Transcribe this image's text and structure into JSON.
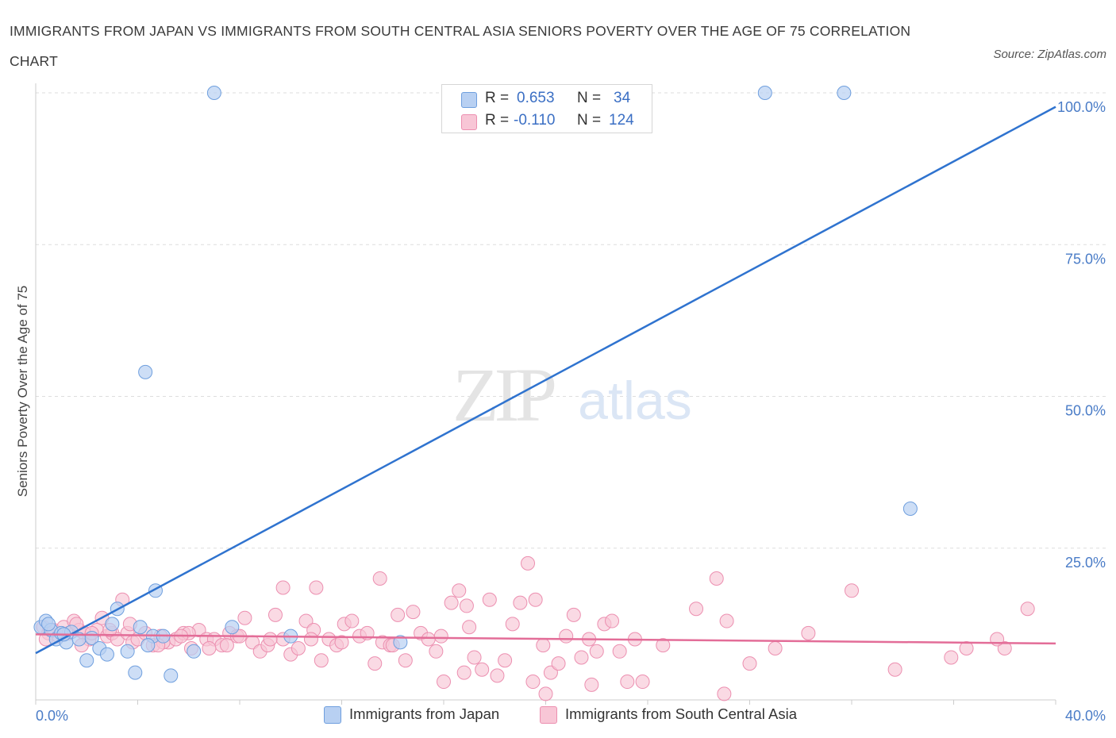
{
  "title": "IMMIGRANTS FROM JAPAN VS IMMIGRANTS FROM SOUTH CENTRAL ASIA SENIORS POVERTY OVER THE AGE OF 75 CORRELATION CHART",
  "source": "Source: ZipAtlas.com",
  "watermark": {
    "zip": "ZIP",
    "atlas": "atlas"
  },
  "legend": {
    "japan": {
      "r_label": "R =",
      "r_value": "0.653",
      "n_label": "N =",
      "n_value": "34"
    },
    "sca": {
      "r_label": "R =",
      "r_value": "-0.110",
      "n_label": "N =",
      "n_value": "124"
    }
  },
  "bottom_legend": {
    "japan": "Immigrants from Japan",
    "sca": "Immigrants from South Central Asia"
  },
  "colors": {
    "japan_fill": "#b8d0f2",
    "japan_stroke": "#6f9fde",
    "japan_line": "#2f73cf",
    "sca_fill": "#f8c6d6",
    "sca_stroke": "#ec8fb0",
    "sca_line": "#e36d98",
    "tick_text": "#4a7cc7",
    "grid": "#dddddd"
  },
  "chart_data": {
    "type": "scatter",
    "title": "IMMIGRANTS FROM JAPAN VS IMMIGRANTS FROM SOUTH CENTRAL ASIA SENIORS POVERTY OVER THE AGE OF 75 CORRELATION CHART",
    "xlabel": "",
    "ylabel": "Seniors Poverty Over the Age of 75",
    "xlim": [
      0,
      40
    ],
    "ylim": [
      0,
      100
    ],
    "x_tick_labels": [
      "0.0%",
      "40.0%"
    ],
    "y_ticks": [
      25,
      50,
      75,
      100
    ],
    "y_tick_labels": [
      "25.0%",
      "50.0%",
      "75.0%",
      "100.0%"
    ],
    "grid": "horizontal dashed",
    "legend_placement": "top-center",
    "series": [
      {
        "name": "Immigrants from Japan",
        "trend": {
          "x": [
            0,
            40
          ],
          "y": [
            7.7,
            97.7
          ]
        },
        "points": [
          [
            0.2,
            12.0
          ],
          [
            0.4,
            13.0
          ],
          [
            0.6,
            11.5
          ],
          [
            0.8,
            10.0
          ],
          [
            1.0,
            11.0
          ],
          [
            1.2,
            9.5
          ],
          [
            1.4,
            11.2
          ],
          [
            1.7,
            10.0
          ],
          [
            2.0,
            6.5
          ],
          [
            2.2,
            10.2
          ],
          [
            2.5,
            8.5
          ],
          [
            2.8,
            7.5
          ],
          [
            3.2,
            15.0
          ],
          [
            3.6,
            8.0
          ],
          [
            3.9,
            4.5
          ],
          [
            4.3,
            54.0
          ],
          [
            4.7,
            18.0
          ],
          [
            4.1,
            12.0
          ],
          [
            4.6,
            10.5
          ],
          [
            5.3,
            4.0
          ],
          [
            5.0,
            10.5
          ],
          [
            6.2,
            8.0
          ],
          [
            7.0,
            100.0
          ],
          [
            7.7,
            12.0
          ],
          [
            10.0,
            10.5
          ],
          [
            14.3,
            9.5
          ],
          [
            16.2,
            100.0
          ],
          [
            28.6,
            100.0
          ],
          [
            31.7,
            100.0
          ],
          [
            34.3,
            31.5
          ],
          [
            0.5,
            12.5
          ],
          [
            1.1,
            10.8
          ],
          [
            3.0,
            12.5
          ],
          [
            4.4,
            9.0
          ]
        ]
      },
      {
        "name": "Immigrants from South Central Asia",
        "trend": {
          "x": [
            0,
            40
          ],
          "y": [
            10.8,
            9.3
          ]
        },
        "points": [
          [
            0.3,
            12.0
          ],
          [
            0.5,
            11.0
          ],
          [
            0.7,
            11.5
          ],
          [
            0.9,
            10.5
          ],
          [
            1.1,
            12.0
          ],
          [
            1.3,
            11.0
          ],
          [
            1.5,
            13.0
          ],
          [
            1.7,
            11.5
          ],
          [
            1.9,
            11.0
          ],
          [
            2.1,
            10.0
          ],
          [
            2.4,
            11.5
          ],
          [
            2.6,
            13.5
          ],
          [
            2.8,
            10.5
          ],
          [
            3.0,
            11.0
          ],
          [
            3.2,
            10.0
          ],
          [
            3.4,
            16.5
          ],
          [
            3.6,
            11.0
          ],
          [
            3.8,
            9.5
          ],
          [
            4.0,
            10.0
          ],
          [
            4.3,
            11.0
          ],
          [
            4.6,
            9.0
          ],
          [
            4.9,
            10.5
          ],
          [
            5.2,
            9.5
          ],
          [
            5.5,
            10.0
          ],
          [
            5.8,
            11.0
          ],
          [
            6.1,
            8.5
          ],
          [
            6.4,
            11.5
          ],
          [
            6.7,
            10.0
          ],
          [
            7.0,
            10.0
          ],
          [
            7.3,
            9.0
          ],
          [
            7.6,
            11.0
          ],
          [
            7.9,
            10.5
          ],
          [
            8.2,
            13.5
          ],
          [
            8.5,
            9.5
          ],
          [
            8.8,
            8.0
          ],
          [
            9.1,
            9.0
          ],
          [
            9.4,
            14.0
          ],
          [
            9.7,
            10.0
          ],
          [
            10.0,
            7.5
          ],
          [
            10.3,
            8.5
          ],
          [
            10.6,
            13.0
          ],
          [
            10.9,
            11.5
          ],
          [
            11.2,
            6.5
          ],
          [
            11.5,
            10.0
          ],
          [
            11.8,
            9.0
          ],
          [
            12.1,
            12.5
          ],
          [
            12.4,
            13.0
          ],
          [
            12.7,
            10.5
          ],
          [
            13.0,
            11.0
          ],
          [
            13.3,
            6.0
          ],
          [
            13.6,
            9.5
          ],
          [
            13.9,
            9.0
          ],
          [
            14.2,
            14.0
          ],
          [
            14.5,
            6.5
          ],
          [
            14.8,
            14.5
          ],
          [
            15.1,
            11.0
          ],
          [
            15.4,
            10.0
          ],
          [
            15.7,
            8.0
          ],
          [
            16.0,
            3.0
          ],
          [
            16.3,
            16.0
          ],
          [
            16.6,
            18.0
          ],
          [
            16.9,
            15.5
          ],
          [
            17.2,
            7.0
          ],
          [
            17.5,
            5.0
          ],
          [
            17.8,
            16.5
          ],
          [
            18.1,
            4.0
          ],
          [
            18.4,
            6.5
          ],
          [
            18.7,
            12.5
          ],
          [
            19.0,
            16.0
          ],
          [
            19.3,
            22.5
          ],
          [
            19.6,
            16.5
          ],
          [
            19.9,
            9.0
          ],
          [
            20.2,
            4.5
          ],
          [
            20.5,
            6.0
          ],
          [
            20.8,
            10.5
          ],
          [
            21.1,
            14.0
          ],
          [
            21.4,
            7.0
          ],
          [
            21.7,
            10.0
          ],
          [
            22.0,
            8.0
          ],
          [
            22.3,
            12.5
          ],
          [
            22.6,
            13.0
          ],
          [
            22.9,
            8.0
          ],
          [
            23.2,
            3.0
          ],
          [
            23.5,
            10.0
          ],
          [
            24.6,
            9.0
          ],
          [
            26.7,
            20.0
          ],
          [
            27.1,
            13.0
          ],
          [
            28.0,
            6.0
          ],
          [
            29.0,
            8.5
          ],
          [
            32.0,
            18.0
          ],
          [
            33.7,
            5.0
          ],
          [
            35.9,
            7.0
          ],
          [
            36.5,
            8.5
          ],
          [
            38.0,
            8.5
          ],
          [
            38.9,
            15.0
          ],
          [
            37.7,
            10.0
          ],
          [
            30.3,
            11.0
          ],
          [
            25.9,
            15.0
          ],
          [
            13.5,
            20.0
          ],
          [
            11.0,
            18.5
          ],
          [
            9.7,
            18.5
          ],
          [
            6.0,
            11.0
          ],
          [
            5.0,
            9.5
          ],
          [
            15.9,
            10.5
          ],
          [
            2.2,
            11.0
          ],
          [
            1.8,
            9.0
          ],
          [
            12.0,
            9.5
          ],
          [
            3.7,
            12.5
          ],
          [
            4.8,
            9.0
          ],
          [
            8.0,
            10.5
          ],
          [
            6.8,
            8.5
          ],
          [
            9.2,
            10.0
          ],
          [
            10.8,
            10.0
          ],
          [
            14.0,
            9.0
          ],
          [
            17.0,
            12.0
          ],
          [
            19.5,
            3.0
          ],
          [
            20.0,
            1.0
          ],
          [
            21.8,
            2.5
          ],
          [
            23.8,
            3.0
          ],
          [
            27.0,
            1.0
          ],
          [
            0.4,
            10.0
          ],
          [
            1.6,
            12.5
          ],
          [
            2.9,
            11.5
          ],
          [
            5.7,
            10.5
          ],
          [
            7.5,
            9.0
          ],
          [
            16.8,
            4.5
          ]
        ]
      }
    ]
  }
}
